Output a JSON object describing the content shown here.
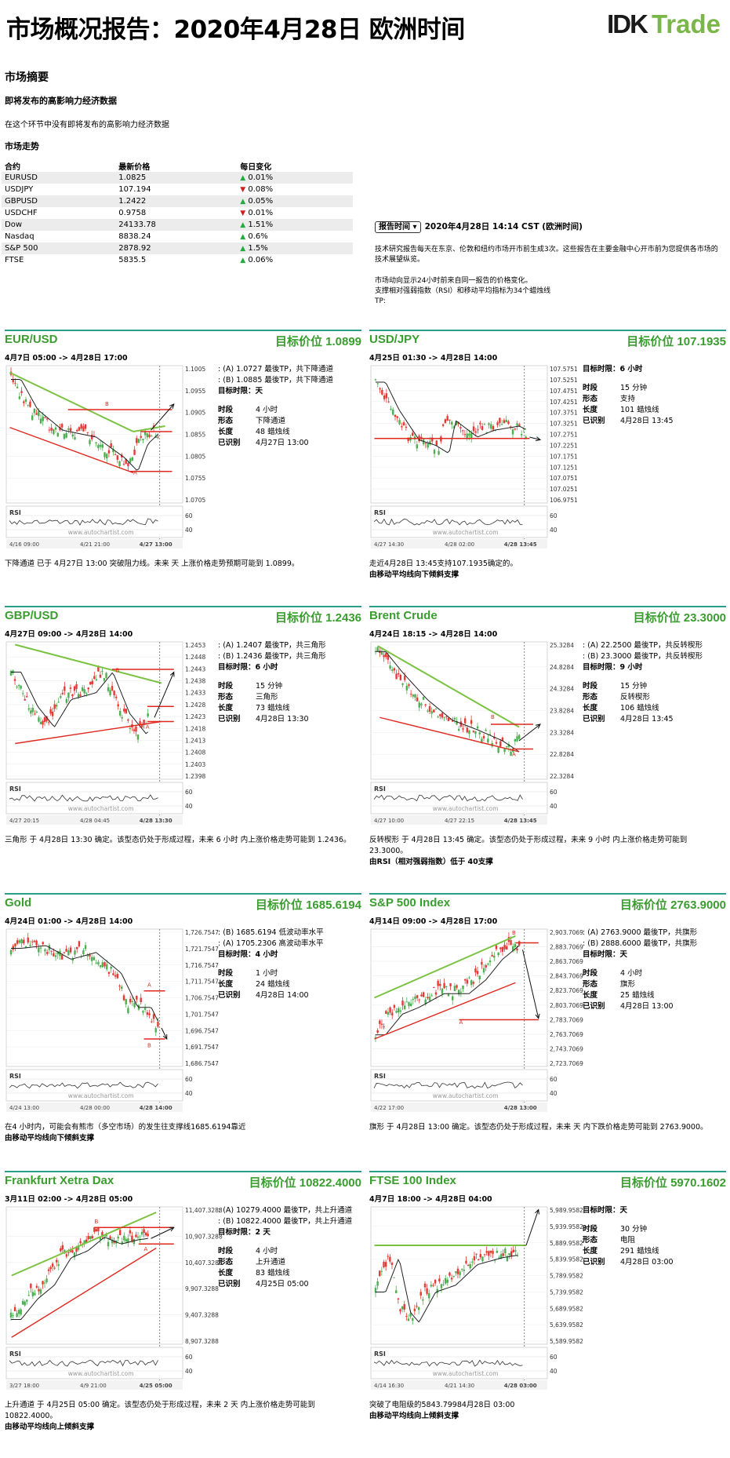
{
  "header": {
    "title": "市场概况报告：2020年4月28日 欧洲时间",
    "logo_dk": "IDK",
    "logo_trade": "Trade"
  },
  "summary": {
    "heading": "市场摘要",
    "subheading": "即将发布的高影响力经济数据",
    "note": "在这个环节中没有即将发布的高影响力经济数据",
    "trend_heading": "市场走势"
  },
  "market_table": {
    "headers": [
      "合约",
      "最新价格",
      "每日变化"
    ],
    "rows": [
      {
        "name": "EURUSD",
        "price": "1.0825",
        "dir": "up",
        "change": "0.01%"
      },
      {
        "name": "USDJPY",
        "price": "107.194",
        "dir": "down",
        "change": "0.08%"
      },
      {
        "name": "GBPUSD",
        "price": "1.2422",
        "dir": "up",
        "change": "0.05%"
      },
      {
        "name": "USDCHF",
        "price": "0.9758",
        "dir": "down",
        "change": "0.01%"
      },
      {
        "name": "Dow",
        "price": "24133.78",
        "dir": "up",
        "change": "1.51%"
      },
      {
        "name": "Nasdaq",
        "price": "8838.24",
        "dir": "up",
        "change": "0.6%"
      },
      {
        "name": "S&P 500",
        "price": "2878.92",
        "dir": "up",
        "change": "1.5%"
      },
      {
        "name": "FTSE",
        "price": "5835.5",
        "dir": "up",
        "change": "0.06%"
      }
    ]
  },
  "report_time": {
    "button": "报告时间",
    "value": "2020年4月28日 14:14 CST (欧洲时间)",
    "para1": "技术研究报告每天在东京、伦敦和纽约市场开市前生成3次。这些报告在主要金融中心开市前为您提供各市场的技术展望纵览。",
    "para2": "市场动向显示24小时前来自同一报告的价格变化。",
    "para3": "支撑相对强弱指数（RSI）和移动平均指标为34个蜡烛线",
    "para4": "TP:"
  },
  "labels": {
    "timeframe": "时段",
    "pattern": "形态",
    "length": "长度",
    "identified": "已识别",
    "rsi": "RSI",
    "watermark": "www.autochartist.com"
  },
  "panels": [
    {
      "name": "EUR/USD",
      "target": "目标价位 1.0899",
      "date": "4月7日 05:00 -> 4月28日 17:00",
      "lines": [
        ": (A) 1.0727 最後TP，共下降通道",
        ": (B) 1.0885 最後TP，共下降通道",
        "目标时限：天"
      ],
      "timeframe": "4 小时",
      "pattern": "下降通道",
      "length": "48 蜡烛线",
      "identified": "4月27日 13:00",
      "desc": "下降通道 已于 4月27日 13:00 突破阻力线。未来 天 上涨价格走势预期可能到 1.0899。",
      "desc2": "",
      "yticks": [
        "1.1005",
        "1.0955",
        "1.0905",
        "1.0855",
        "1.0805",
        "1.0755",
        "1.0705"
      ],
      "xticks": [
        "4/16 09:00",
        "4/21 21:00",
        "4/27 13:00"
      ],
      "kind": "EURUSD"
    },
    {
      "name": "USD/JPY",
      "target": "目标价位 107.1935",
      "date": "4月25日 01:30 -> 4月28日 14:00",
      "lines": [
        "目标时限：6 小时"
      ],
      "hasRows": true,
      "rowsOnly": [
        [
          "时段",
          "15 分钟"
        ],
        [
          "形态",
          "支持"
        ],
        [
          "长度",
          "101 蜡烛线"
        ],
        [
          "已识别",
          "4月28日 13:45"
        ]
      ],
      "timeframe": "15 分钟",
      "pattern": "支持",
      "length": "101 蜡烛线",
      "identified": "4月28日 13:45",
      "desc": "走近4月28日 13:45支持107.1935确定的。",
      "desc2": "由移动平均线向下倾斜支撑",
      "yticks": [
        "107.5751",
        "107.5251",
        "107.4751",
        "107.4251",
        "107.3751",
        "107.3251",
        "107.2751",
        "107.2251",
        "107.1751",
        "107.1251",
        "107.0751",
        "107.0251",
        "106.9751"
      ],
      "xticks": [
        "4/27 14:30",
        "4/28 02:00",
        "4/28 13:45"
      ],
      "kind": "USDJPY"
    },
    {
      "name": "GBP/USD",
      "target": "目标价位 1.2436",
      "date": "4月27日 09:00 -> 4月28日 14:00",
      "lines": [
        ": (A) 1.2407 最後TP，共三角形",
        ": (B) 1.2436 最後TP，共三角形",
        "目标时限：6 小时"
      ],
      "timeframe": "15 分钟",
      "pattern": "三角形",
      "length": "73 蜡烛线",
      "identified": "4月28日 13:30",
      "desc": "三角形 于 4月28日 13:30 确定。该型态仍处于形成过程，未来 6 小时 内上涨价格走势可能到 1.2436。",
      "desc2": "",
      "yticks": [
        "1.2453",
        "1.2448",
        "1.2443",
        "1.2438",
        "1.2433",
        "1.2428",
        "1.2423",
        "1.2418",
        "1.2413",
        "1.2408",
        "1.2403",
        "1.2398"
      ],
      "xticks": [
        "4/27 20:15",
        "4/28 04:45",
        "4/28 13:30"
      ],
      "kind": "GBPUSD"
    },
    {
      "name": "Brent Crude",
      "target": "目标价位 23.3000",
      "date": "4月24日 18:15 -> 4月28日 14:00",
      "lines": [
        ": (A) 22.2500 最後TP，共反转楔形",
        ": (B) 23.3000 最後TP，共反转楔形",
        "目标时限：9 小时"
      ],
      "timeframe": "15 分钟",
      "pattern": "反转楔形",
      "length": "106 蜡烛线",
      "identified": "4月28日 13:45",
      "desc": "反转楔形 于 4月28日 13:45 确定。该型态仍处于形成过程，未来 9 小时 内上涨价格走势可能到 23.3000。",
      "desc2": "由RSI（相对强弱指数）低于 40支撑",
      "yticks": [
        "25.3284",
        "24.8284",
        "24.3284",
        "23.8284",
        "23.3284",
        "22.8284",
        "22.3284"
      ],
      "xticks": [
        "4/27 10:00",
        "4/27 22:15",
        "4/28 13:45"
      ],
      "kind": "BRENT"
    },
    {
      "name": "Gold",
      "target": "目标价位 1685.6194",
      "date": "4月24日 01:00 -> 4月28日 14:00",
      "lines": [
        ": (B) 1685.6194 低波动率水平",
        ": (A) 1705.2306 高波动率水平",
        "目标时限：4 小时"
      ],
      "timeframe": "1 小时",
      "pattern": "",
      "length": "24 蜡烛线",
      "identified": "4月28日 14:00",
      "desc": "在4 小时内，可能会有熊市（多空市场）的发生往支撑线1685.6194靠近",
      "desc2": "由移动平均线向下倾斜支撑",
      "yticks": [
        "1,726.7547",
        "1,721.7547",
        "1,716.7547",
        "1,711.7547",
        "1,706.7547",
        "1,701.7547",
        "1,696.7547",
        "1,691.7547",
        "1,686.7547"
      ],
      "xticks": [
        "4/24 13:00",
        "4/28 00:00",
        "4/28 14:00"
      ],
      "kind": "GOLD"
    },
    {
      "name": "S&P 500 Index",
      "target": "目标价位 2763.9000",
      "date": "4月14日 09:00 -> 4月28日 17:00",
      "lines": [
        ": (A) 2763.9000 最後TP，共旗形",
        ": (B) 2888.6000 最後TP，共旗形",
        "目标时限：天"
      ],
      "timeframe": "4 小时",
      "pattern": "旗形",
      "length": "25 蜡烛线",
      "identified": "4月28日 13:00",
      "desc": "旗形 于 4月28日 13:00 确定。该型态仍处于形成过程，未来 天 内下跌价格走势可能到 2763.9000。",
      "desc2": "",
      "yticks": [
        "2,903.7069",
        "2,883.7069",
        "2,863.7069",
        "2,843.7069",
        "2,823.7069",
        "2,803.7069",
        "2,783.7069",
        "2,763.7069",
        "2,743.7069",
        "2,723.7069"
      ],
      "xticks": [
        "4/22 17:00",
        "4/28 13:00"
      ],
      "kind": "SPX"
    },
    {
      "name": "Frankfurt Xetra Dax",
      "target": "目标价位 10822.4000",
      "date": "3月11日 02:00 -> 4月28日 05:00",
      "lines": [
        ": (A) 10279.4000 最後TP，共上升通道",
        ": (B) 10822.4000 最後TP，共上升通道",
        "目标时限：2 天"
      ],
      "timeframe": "4 小时",
      "pattern": "上升通道",
      "length": "83 蜡烛线",
      "identified": "4月25日 05:00",
      "desc": "上升通道 于 4月25日 05:00 确定。该型态仍处于形成过程，未来 2 天 内上涨价格走势可能到 10822.4000。",
      "desc2": "由移动平均线向上倾斜支撑",
      "yticks": [
        "11,407.3288",
        "10,907.3288",
        "10,407.3288",
        "9,907.3288",
        "9,407.3288",
        "8,907.3288"
      ],
      "xticks": [
        "3/27 18:00",
        "4/9 21:00",
        "4/25 05:00"
      ],
      "kind": "DAX"
    },
    {
      "name": "FTSE 100 Index",
      "target": "目标价位 5970.1602",
      "date": "4月7日 18:00 -> 4月28日 04:00",
      "lines": [
        "目标时限：天"
      ],
      "timeframe": "30 分钟",
      "pattern": "电阻",
      "length": "291 蜡烛线",
      "identified": "4月28日 03:00",
      "desc": "突破了电阻级的5843.79984月28日 03:00",
      "desc2": "由移动平均线向上倾斜支撑",
      "yticks": [
        "5,989.9582",
        "5,939.9582",
        "5,889.9582",
        "5,839.9582",
        "5,789.9582",
        "5,739.9582",
        "5,689.9582",
        "5,639.9582",
        "5,589.9582"
      ],
      "xticks": [
        "4/14 16:30",
        "4/21 14:30",
        "4/28 03:00"
      ],
      "kind": "FTSE"
    }
  ],
  "rsi_ticks": [
    "60",
    "40"
  ],
  "colors": {
    "green": "#3a9d2f",
    "teal": "#2a9d8f",
    "red": "#e0281f",
    "pattern_green": "#7cc242"
  }
}
